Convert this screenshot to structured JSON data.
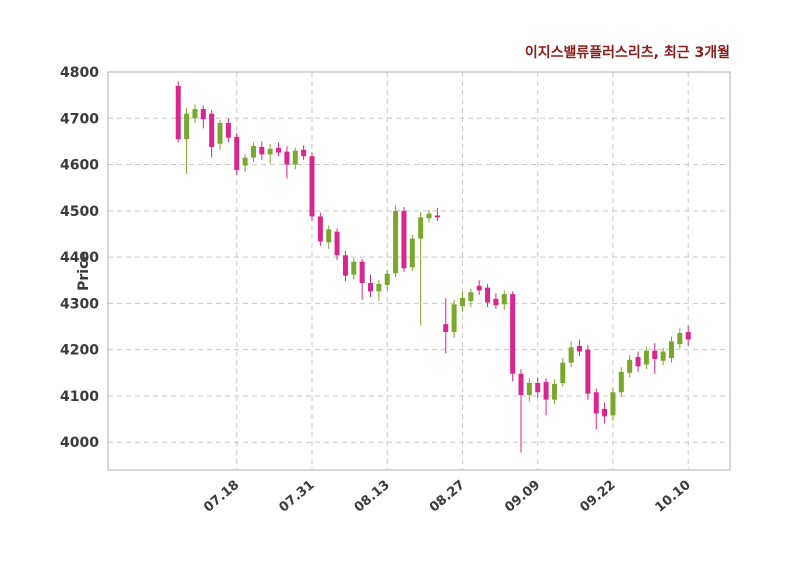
{
  "chart_data": {
    "type": "candlestick",
    "title": "이지스밸류플러스리츠, 최근 3개월",
    "ylabel": "Price",
    "ylim": [
      3940,
      4800
    ],
    "x_index_range": [
      -8.4,
      66
    ],
    "grid": "dashed",
    "yticks": [
      4000,
      4100,
      4200,
      4300,
      4400,
      4500,
      4600,
      4700,
      4800
    ],
    "xticks": [
      {
        "index": 7,
        "label": "07.18"
      },
      {
        "index": 16,
        "label": "07.31"
      },
      {
        "index": 25,
        "label": "08.13"
      },
      {
        "index": 34,
        "label": "08.27"
      },
      {
        "index": 43,
        "label": "09.09"
      },
      {
        "index": 52,
        "label": "09.22"
      },
      {
        "index": 61,
        "label": "10.10"
      }
    ],
    "colors": {
      "up": "#7aa82c",
      "down": "#d9268f",
      "grid": "#c9c9c9",
      "axis_border": "#bdbdbd",
      "tick_text": "#3a3a3a",
      "title_text": "#8b1d1d"
    },
    "candles_format": [
      "open",
      "high",
      "low",
      "close"
    ],
    "candles": [
      [
        4770,
        4780,
        4648,
        4655
      ],
      [
        4655,
        4722,
        4580,
        4710
      ],
      [
        4700,
        4730,
        4690,
        4720
      ],
      [
        4720,
        4728,
        4678,
        4698
      ],
      [
        4710,
        4718,
        4615,
        4638
      ],
      [
        4645,
        4696,
        4632,
        4690
      ],
      [
        4690,
        4700,
        4648,
        4658
      ],
      [
        4660,
        4668,
        4578,
        4588
      ],
      [
        4598,
        4622,
        4584,
        4615
      ],
      [
        4615,
        4648,
        4605,
        4640
      ],
      [
        4638,
        4650,
        4610,
        4622
      ],
      [
        4622,
        4644,
        4602,
        4634
      ],
      [
        4636,
        4648,
        4618,
        4626
      ],
      [
        4628,
        4640,
        4570,
        4600
      ],
      [
        4600,
        4636,
        4590,
        4630
      ],
      [
        4632,
        4642,
        4610,
        4618
      ],
      [
        4618,
        4626,
        4478,
        4488
      ],
      [
        4488,
        4496,
        4424,
        4434
      ],
      [
        4432,
        4468,
        4418,
        4460
      ],
      [
        4455,
        4462,
        4394,
        4404
      ],
      [
        4404,
        4414,
        4348,
        4360
      ],
      [
        4362,
        4398,
        4352,
        4390
      ],
      [
        4390,
        4396,
        4308,
        4344
      ],
      [
        4344,
        4362,
        4314,
        4326
      ],
      [
        4326,
        4350,
        4306,
        4342
      ],
      [
        4340,
        4372,
        4328,
        4364
      ],
      [
        4365,
        4512,
        4356,
        4500
      ],
      [
        4500,
        4508,
        4368,
        4376
      ],
      [
        4378,
        4448,
        4370,
        4440
      ],
      [
        4440,
        4498,
        4252,
        4486
      ],
      [
        4484,
        4502,
        4474,
        4494
      ],
      [
        4490,
        4506,
        4478,
        4486
      ],
      [
        4255,
        4312,
        4192,
        4238
      ],
      [
        4238,
        4308,
        4226,
        4298
      ],
      [
        4294,
        4326,
        4282,
        4312
      ],
      [
        4305,
        4332,
        4292,
        4324
      ],
      [
        4338,
        4350,
        4318,
        4328
      ],
      [
        4334,
        4342,
        4292,
        4302
      ],
      [
        4310,
        4322,
        4288,
        4296
      ],
      [
        4298,
        4328,
        4286,
        4320
      ],
      [
        4320,
        4326,
        4132,
        4148
      ],
      [
        4148,
        4158,
        3978,
        4102
      ],
      [
        4102,
        4138,
        4088,
        4128
      ],
      [
        4128,
        4140,
        4096,
        4108
      ],
      [
        4130,
        4138,
        4058,
        4092
      ],
      [
        4092,
        4136,
        4082,
        4126
      ],
      [
        4128,
        4182,
        4120,
        4172
      ],
      [
        4172,
        4218,
        4162,
        4205
      ],
      [
        4208,
        4222,
        4186,
        4196
      ],
      [
        4200,
        4210,
        4092,
        4105
      ],
      [
        4108,
        4116,
        4028,
        4062
      ],
      [
        4072,
        4086,
        4040,
        4056
      ],
      [
        4058,
        4118,
        4046,
        4108
      ],
      [
        4108,
        4162,
        4098,
        4152
      ],
      [
        4150,
        4188,
        4140,
        4178
      ],
      [
        4184,
        4196,
        4152,
        4164
      ],
      [
        4168,
        4206,
        4158,
        4198
      ],
      [
        4198,
        4214,
        4148,
        4180
      ],
      [
        4176,
        4204,
        4166,
        4196
      ],
      [
        4182,
        4228,
        4172,
        4218
      ],
      [
        4212,
        4246,
        4202,
        4236
      ],
      [
        4238,
        4252,
        4208,
        4222
      ]
    ]
  }
}
